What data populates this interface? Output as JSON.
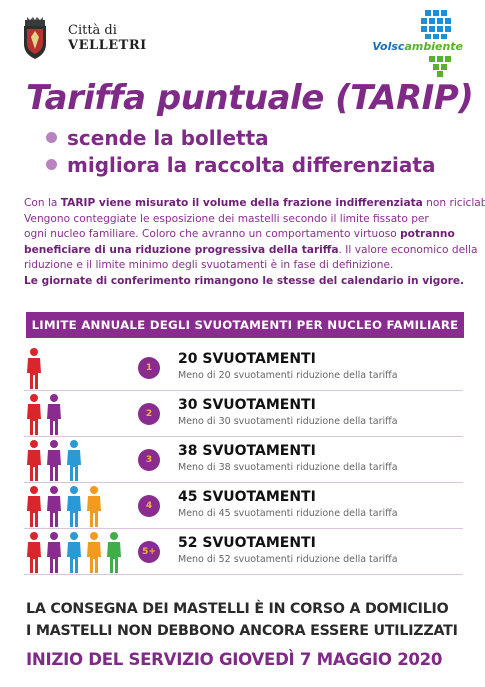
{
  "header": {
    "city_prefix": "Città di",
    "city_name": "VELLETRI",
    "partner_logo_text_a": "Volsc",
    "partner_logo_text_b": "ambiente"
  },
  "title": "Tariffa puntuale (TARIP)",
  "bullets": [
    "scende la bolletta",
    "migliora la raccolta differenziata"
  ],
  "paragraph": {
    "l1_a": "Con la ",
    "l1_b": "TARIP viene misurato il volume della frazione indifferenziata",
    "l1_c": " non riciclabile.",
    "l2": "Vengono conteggiate le esposizione dei mastelli secondo il limite fissato per",
    "l3_a": "ogni nucleo familiare. Coloro che avranno un comportamento virtuoso ",
    "l3_b": "potranno",
    "l4": "beneficiare di una riduzione progressiva della tariffa",
    "l4_c": ". Il valore economico della",
    "l5": "riduzione e il limite minimo degli svuotamenti è in fase di definizione.",
    "l6": "Le giornate di conferimento rimangono le stesse del calendario in vigore."
  },
  "banner": "LIMITE ANNUALE DEGLI SVUOTAMENTI PER NUCLEO FAMILIARE",
  "rows": [
    {
      "num": "1",
      "label": "20 SVUOTAMENTI",
      "sub": "Meno di 20 svuotamenti riduzione della tariffa",
      "people": 1
    },
    {
      "num": "2",
      "label": "30 SVUOTAMENTI",
      "sub": "Meno di 30 svuotamenti riduzione della tariffa",
      "people": 2
    },
    {
      "num": "3",
      "label": "38 SVUOTAMENTI",
      "sub": "Meno di 38 svuotamenti riduzione della tariffa",
      "people": 3
    },
    {
      "num": "4",
      "label": "45 SVUOTAMENTI",
      "sub": "Meno di 45 svuotamenti riduzione della tariffa",
      "people": 4
    },
    {
      "num": "5+",
      "label": "52 SVUOTAMENTI",
      "sub": "Meno di 52 svuotamenti riduzione della tariffa",
      "people": 5
    }
  ],
  "people_colors": [
    "#d9262c",
    "#8a2c8f",
    "#2a9ad6",
    "#f39a1f",
    "#3fae49"
  ],
  "footer": {
    "line1": "LA CONSEGNA DEI MASTELLI È IN CORSO A DOMICILIO",
    "line2": "I MASTELLI NON DEBBONO ANCORA ESSERE UTILIZZATI",
    "line3": "INIZIO DEL SERVIZIO GIOVEDÌ 7 MAGGIO 2020"
  }
}
